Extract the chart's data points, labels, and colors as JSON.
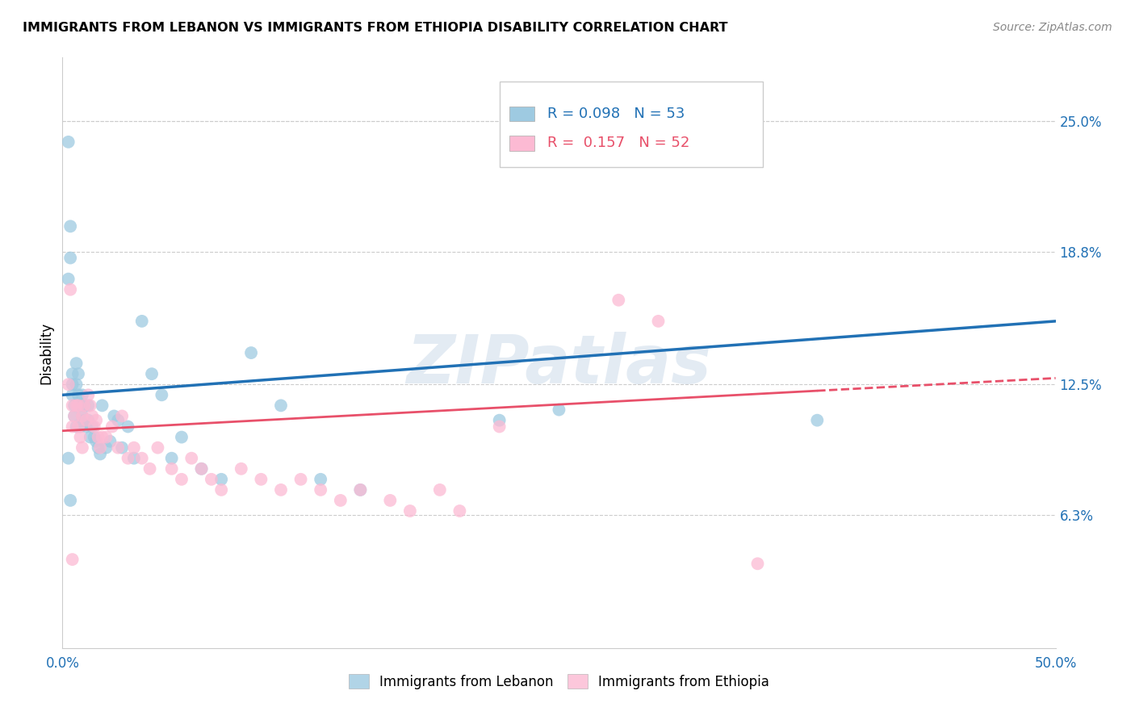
{
  "title": "IMMIGRANTS FROM LEBANON VS IMMIGRANTS FROM ETHIOPIA DISABILITY CORRELATION CHART",
  "source": "Source: ZipAtlas.com",
  "ylabel": "Disability",
  "xlim": [
    0.0,
    0.5
  ],
  "ylim": [
    0.0,
    0.28
  ],
  "xtick_positions": [
    0.0,
    0.1,
    0.2,
    0.3,
    0.4,
    0.5
  ],
  "xticklabels": [
    "0.0%",
    "",
    "",
    "",
    "",
    "50.0%"
  ],
  "ytick_positions": [
    0.063,
    0.125,
    0.188,
    0.25
  ],
  "yticklabels": [
    "6.3%",
    "12.5%",
    "18.8%",
    "25.0%"
  ],
  "lebanon_color": "#9ECAE1",
  "ethiopia_color": "#FCBAD3",
  "lebanon_line_color": "#2171B5",
  "ethiopia_line_color": "#E8506A",
  "watermark": "ZIPatlas",
  "legend_line1": "R = 0.098   N = 53",
  "legend_line2": "R =  0.157   N = 52",
  "lebanon_x": [
    0.003,
    0.003,
    0.004,
    0.004,
    0.005,
    0.005,
    0.005,
    0.006,
    0.006,
    0.007,
    0.007,
    0.007,
    0.008,
    0.008,
    0.009,
    0.009,
    0.01,
    0.01,
    0.011,
    0.011,
    0.012,
    0.013,
    0.013,
    0.014,
    0.015,
    0.016,
    0.017,
    0.018,
    0.019,
    0.02,
    0.022,
    0.024,
    0.026,
    0.028,
    0.03,
    0.033,
    0.036,
    0.04,
    0.045,
    0.05,
    0.055,
    0.06,
    0.07,
    0.08,
    0.095,
    0.11,
    0.13,
    0.15,
    0.22,
    0.25,
    0.38,
    0.003,
    0.004
  ],
  "lebanon_y": [
    0.24,
    0.175,
    0.2,
    0.185,
    0.13,
    0.125,
    0.12,
    0.115,
    0.11,
    0.135,
    0.125,
    0.105,
    0.12,
    0.13,
    0.115,
    0.105,
    0.12,
    0.11,
    0.115,
    0.108,
    0.105,
    0.115,
    0.108,
    0.1,
    0.105,
    0.1,
    0.098,
    0.095,
    0.092,
    0.115,
    0.095,
    0.098,
    0.11,
    0.108,
    0.095,
    0.105,
    0.09,
    0.155,
    0.13,
    0.12,
    0.09,
    0.1,
    0.085,
    0.08,
    0.14,
    0.115,
    0.08,
    0.075,
    0.108,
    0.113,
    0.108,
    0.09,
    0.07
  ],
  "ethiopia_x": [
    0.003,
    0.004,
    0.005,
    0.005,
    0.006,
    0.007,
    0.008,
    0.008,
    0.009,
    0.01,
    0.01,
    0.011,
    0.012,
    0.013,
    0.014,
    0.015,
    0.016,
    0.017,
    0.018,
    0.019,
    0.02,
    0.022,
    0.025,
    0.028,
    0.03,
    0.033,
    0.036,
    0.04,
    0.044,
    0.048,
    0.055,
    0.06,
    0.065,
    0.07,
    0.075,
    0.08,
    0.09,
    0.1,
    0.11,
    0.12,
    0.13,
    0.14,
    0.15,
    0.165,
    0.175,
    0.19,
    0.2,
    0.22,
    0.28,
    0.3,
    0.35,
    0.005
  ],
  "ethiopia_y": [
    0.125,
    0.17,
    0.115,
    0.105,
    0.11,
    0.115,
    0.105,
    0.115,
    0.1,
    0.11,
    0.095,
    0.115,
    0.108,
    0.12,
    0.115,
    0.11,
    0.105,
    0.108,
    0.1,
    0.095,
    0.1,
    0.1,
    0.105,
    0.095,
    0.11,
    0.09,
    0.095,
    0.09,
    0.085,
    0.095,
    0.085,
    0.08,
    0.09,
    0.085,
    0.08,
    0.075,
    0.085,
    0.08,
    0.075,
    0.08,
    0.075,
    0.07,
    0.075,
    0.07,
    0.065,
    0.075,
    0.065,
    0.105,
    0.165,
    0.155,
    0.04,
    0.042
  ],
  "leb_line_x": [
    0.0,
    0.5
  ],
  "leb_line_y": [
    0.12,
    0.155
  ],
  "eth_line_x": [
    0.0,
    0.5
  ],
  "eth_line_y": [
    0.103,
    0.128
  ],
  "eth_line_solid_end": 0.38
}
